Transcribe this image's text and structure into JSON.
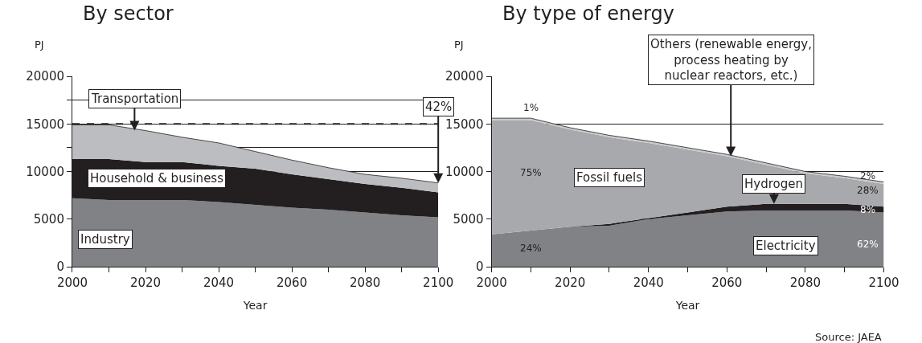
{
  "chart_data": [
    {
      "type": "area",
      "stacked": true,
      "title": "By sector",
      "xlabel": "Year",
      "ylabel": "PJ",
      "x": [
        2000,
        2010,
        2020,
        2030,
        2040,
        2050,
        2060,
        2070,
        2080,
        2090,
        2100
      ],
      "series": [
        {
          "color": "#808285",
          "values": [
            7200,
            7000,
            7000,
            7000,
            6800,
            6500,
            6200,
            6000,
            5700,
            5400,
            5200
          ]
        },
        {
          "color": "#231f20",
          "values": [
            4100,
            4300,
            4000,
            4000,
            3800,
            3800,
            3500,
            3200,
            3000,
            2900,
            2600
          ]
        },
        {
          "color": "#bcbdc0",
          "values": [
            3600,
            3600,
            3300,
            2600,
            2400,
            1800,
            1500,
            1200,
            1000,
            1000,
            1000
          ]
        }
      ],
      "xlim": [
        2000,
        2100
      ],
      "xticks": [
        2000,
        {
          "value": 2010,
          "label": null
        },
        2020,
        {
          "value": 2030,
          "label": null
        },
        2040,
        {
          "value": 2050,
          "label": null
        },
        2060,
        {
          "value": 2070,
          "label": null
        },
        2080,
        {
          "value": 2090,
          "label": null
        },
        2100
      ],
      "ylim": [
        0,
        20000
      ],
      "yticks": [
        0,
        5000,
        10000,
        {
          "value": 12500,
          "label": null
        },
        15000,
        {
          "value": 17500,
          "label": null
        },
        20000
      ],
      "grid": "y",
      "ref_lines": [
        {
          "axis": "y",
          "value": 15000,
          "line_style": "dashed",
          "color": "#231f20"
        }
      ],
      "annotations": [
        {
          "text": "Transportation",
          "x": 2017,
          "y": 14300
        },
        {
          "text": "42%",
          "x": 2100,
          "y": 8800
        },
        "Household & business",
        "Industry"
      ]
    },
    {
      "type": "area",
      "stacked": true,
      "title": "By type of energy",
      "xlabel": "Year",
      "ylabel": "PJ",
      "x": [
        2000,
        2010,
        2020,
        2030,
        2040,
        2050,
        2060,
        2070,
        2080,
        2090,
        2100
      ],
      "series": [
        {
          "color": "#808285",
          "values": [
            3400,
            3800,
            4200,
            4300,
            5000,
            5400,
            5800,
            5900,
            5900,
            5900,
            5700
          ]
        },
        {
          "color": "#231f20",
          "values": [
            0,
            0,
            0,
            200,
            100,
            300,
            500,
            700,
            700,
            700,
            600
          ]
        },
        {
          "color": "#a7a9ac",
          "values": [
            12000,
            11600,
            10200,
            9100,
            7900,
            6600,
            5300,
            4100,
            3200,
            2700,
            2400
          ]
        },
        {
          "color": "#c8c9cb",
          "values": [
            200,
            200,
            200,
            200,
            200,
            200,
            200,
            200,
            200,
            200,
            200
          ]
        }
      ],
      "xlim": [
        2000,
        2100
      ],
      "xticks": [
        2000,
        {
          "value": 2010,
          "label": null
        },
        2020,
        {
          "value": 2030,
          "label": null
        },
        2040,
        {
          "value": 2050,
          "label": null
        },
        2060,
        {
          "value": 2070,
          "label": null
        },
        2080,
        {
          "value": 2090,
          "label": null
        },
        2100
      ],
      "ylim": [
        0,
        20000
      ],
      "yticks": [
        0,
        5000,
        10000,
        15000,
        20000
      ],
      "grid": "y",
      "annotations": [
        {
          "text": "Others (renewable energy,\nprocess heating by\nnuclear reactors, etc.)",
          "x": 2061,
          "y": 11600
        },
        {
          "text": "Hydrogen",
          "x": 2072,
          "y": 6600
        },
        "Fossil fuels",
        "Electricity",
        "1%",
        "75%",
        "24%",
        "2%",
        "28%",
        "8%",
        "62%",
        "Source: JAEA"
      ]
    }
  ]
}
